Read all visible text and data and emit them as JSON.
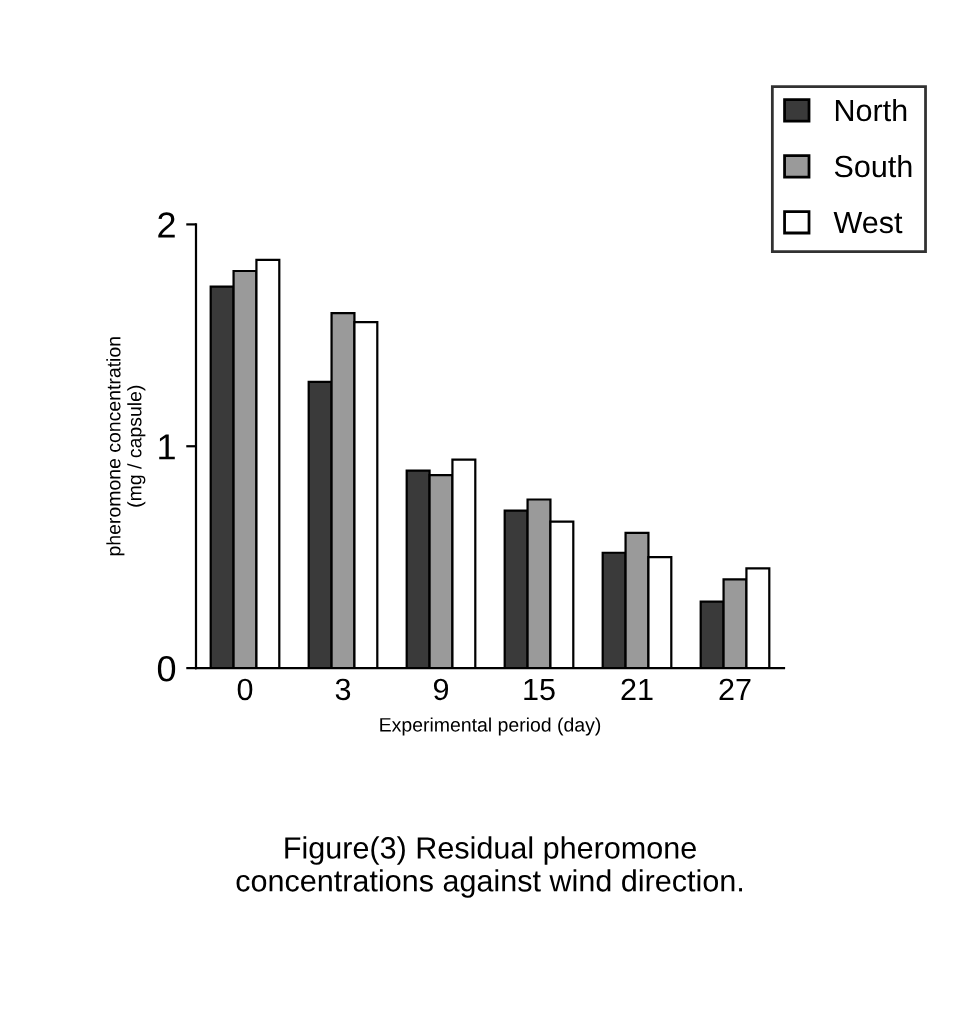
{
  "chart_data": {
    "type": "bar",
    "xlabel": "Experimental period (day)",
    "ylabel": "pheromone concentration\n(mg / capsule)",
    "categories": [
      "0",
      "3",
      "9",
      "15",
      "21",
      "27"
    ],
    "series": [
      {
        "name": "North",
        "color": "#3a3a3a",
        "values": [
          1.72,
          1.29,
          0.89,
          0.71,
          0.52,
          0.3
        ]
      },
      {
        "name": "South",
        "color": "#9a9a9a",
        "values": [
          1.79,
          1.6,
          0.87,
          0.76,
          0.61,
          0.4
        ]
      },
      {
        "name": "West",
        "color": "#ffffff",
        "values": [
          1.84,
          1.56,
          0.94,
          0.66,
          0.5,
          0.45
        ]
      }
    ],
    "ylim": [
      0,
      2
    ],
    "yticks": [
      0,
      1,
      2
    ],
    "grid": false,
    "legend": "top right",
    "annotations": [
      "Figure(3) Residual pheromone\nconcentrations against wind direction."
    ]
  }
}
